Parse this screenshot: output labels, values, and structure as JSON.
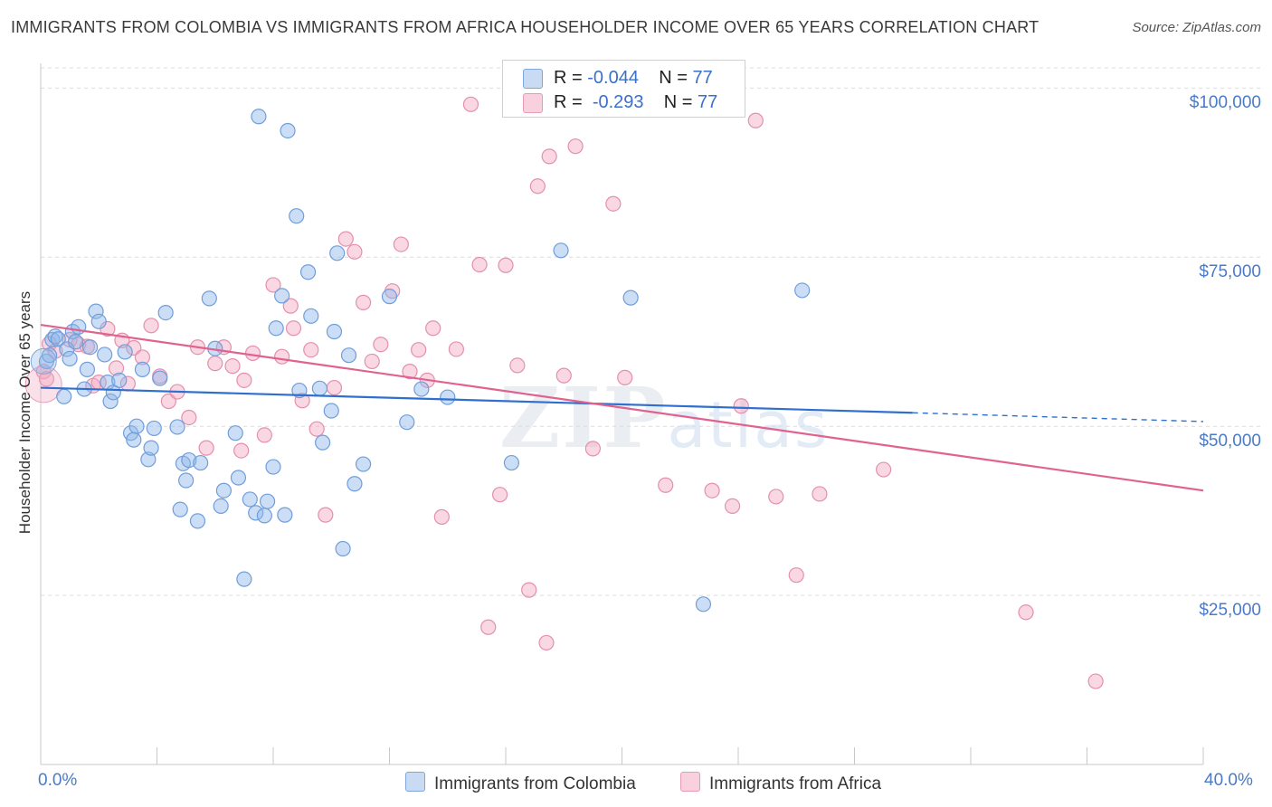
{
  "title": "IMMIGRANTS FROM COLOMBIA VS IMMIGRANTS FROM AFRICA HOUSEHOLDER INCOME OVER 65 YEARS CORRELATION CHART",
  "source": "Source: ZipAtlas.com",
  "watermark": {
    "zip": "ZIP",
    "atlas": "atlas"
  },
  "legend_top": [
    {
      "r_label": "R =",
      "r_value": "-0.044",
      "n_label": "N =",
      "n_value": "77"
    },
    {
      "r_label": "R =",
      "r_value": "-0.293",
      "n_label": "N =",
      "n_value": "77"
    }
  ],
  "bottom_legend": [
    "Immigrants from Colombia",
    "Immigrants from Africa"
  ],
  "colors": {
    "colombia": "#8fb6e8",
    "colombia_line": "#2f6fcf",
    "africa": "#f2a8c0",
    "africa_line": "#e0628f",
    "tick": "#4a7bc8"
  },
  "chart_data": {
    "type": "scatter",
    "title": "IMMIGRANTS FROM COLOMBIA VS IMMIGRANTS FROM AFRICA HOUSEHOLDER INCOME OVER 65 YEARS CORRELATION CHART",
    "xlabel": "",
    "ylabel": "Householder Income Over 65 years",
    "xlim": [
      0,
      40
    ],
    "ylim": [
      0,
      105000
    ],
    "x_tick_labels": [
      "0.0%",
      "40.0%"
    ],
    "y_ticks": [
      25000,
      50000,
      75000,
      100000
    ],
    "y_tick_labels": [
      "$25,000",
      "$50,000",
      "$75,000",
      "$100,000"
    ],
    "grid": "horizontal dashed",
    "legend_position": "top-center",
    "series": [
      {
        "name": "Immigrants from Colombia",
        "trend": {
          "x0": 0,
          "y0": 55700,
          "x1": 30,
          "y1": 52000,
          "dashed_to_x": 40,
          "dashed_to_y": 50700
        },
        "points": [
          [
            0.2,
            59600
          ],
          [
            0.3,
            60500
          ],
          [
            0.4,
            62800
          ],
          [
            0.5,
            63300
          ],
          [
            0.6,
            62900
          ],
          [
            0.8,
            54400
          ],
          [
            0.9,
            61400
          ],
          [
            1.0,
            60000
          ],
          [
            1.1,
            64000
          ],
          [
            1.3,
            64700
          ],
          [
            1.6,
            58400
          ],
          [
            1.7,
            61700
          ],
          [
            1.9,
            67000
          ],
          [
            2.0,
            65500
          ],
          [
            2.2,
            60600
          ],
          [
            2.3,
            56500
          ],
          [
            2.4,
            53700
          ],
          [
            2.5,
            55000
          ],
          [
            2.9,
            61000
          ],
          [
            3.1,
            49000
          ],
          [
            3.2,
            48000
          ],
          [
            3.5,
            58400
          ],
          [
            3.7,
            45100
          ],
          [
            3.8,
            46800
          ],
          [
            3.9,
            49700
          ],
          [
            4.1,
            57100
          ],
          [
            4.3,
            66800
          ],
          [
            4.7,
            49900
          ],
          [
            4.8,
            37700
          ],
          [
            4.9,
            44500
          ],
          [
            5.0,
            42000
          ],
          [
            5.1,
            45000
          ],
          [
            5.4,
            36000
          ],
          [
            5.5,
            44600
          ],
          [
            5.8,
            68900
          ],
          [
            6.0,
            61500
          ],
          [
            6.2,
            38200
          ],
          [
            6.3,
            40500
          ],
          [
            6.7,
            49000
          ],
          [
            6.8,
            42400
          ],
          [
            7.0,
            27400
          ],
          [
            7.2,
            39200
          ],
          [
            7.4,
            37200
          ],
          [
            7.5,
            95800
          ],
          [
            7.7,
            36800
          ],
          [
            7.8,
            38900
          ],
          [
            8.0,
            44000
          ],
          [
            8.1,
            64500
          ],
          [
            8.3,
            69300
          ],
          [
            8.4,
            36900
          ],
          [
            8.5,
            93700
          ],
          [
            8.8,
            81100
          ],
          [
            8.9,
            55300
          ],
          [
            9.2,
            72800
          ],
          [
            9.3,
            66300
          ],
          [
            9.6,
            55600
          ],
          [
            9.7,
            47600
          ],
          [
            10.0,
            52300
          ],
          [
            10.1,
            64000
          ],
          [
            10.2,
            75600
          ],
          [
            10.4,
            31900
          ],
          [
            10.6,
            60500
          ],
          [
            10.8,
            41500
          ],
          [
            11.1,
            44400
          ],
          [
            12.0,
            69200
          ],
          [
            12.6,
            50600
          ],
          [
            13.1,
            55500
          ],
          [
            14.0,
            54300
          ],
          [
            16.2,
            44600
          ],
          [
            17.9,
            76000
          ],
          [
            20.3,
            69000
          ],
          [
            22.8,
            23700
          ],
          [
            26.2,
            70100
          ],
          [
            1.5,
            55500
          ],
          [
            3.3,
            50000
          ],
          [
            2.7,
            56800
          ],
          [
            1.2,
            62500
          ]
        ]
      },
      {
        "name": "Immigrants from Africa",
        "trend": {
          "x0": 0,
          "y0": 65000,
          "x1": 40,
          "y1": 40500
        },
        "points": [
          [
            0.1,
            58100
          ],
          [
            0.2,
            57000
          ],
          [
            0.3,
            62200
          ],
          [
            0.5,
            61100
          ],
          [
            1.0,
            62800
          ],
          [
            1.3,
            62100
          ],
          [
            1.6,
            61800
          ],
          [
            1.8,
            56000
          ],
          [
            2.0,
            56500
          ],
          [
            2.3,
            64400
          ],
          [
            2.6,
            58600
          ],
          [
            2.8,
            62700
          ],
          [
            3.0,
            56300
          ],
          [
            3.2,
            61600
          ],
          [
            3.5,
            60200
          ],
          [
            3.8,
            64900
          ],
          [
            4.1,
            57400
          ],
          [
            4.4,
            53700
          ],
          [
            4.7,
            55100
          ],
          [
            5.1,
            51300
          ],
          [
            5.4,
            61700
          ],
          [
            5.7,
            46800
          ],
          [
            6.0,
            59300
          ],
          [
            6.3,
            61700
          ],
          [
            6.6,
            58900
          ],
          [
            6.9,
            46400
          ],
          [
            7.3,
            60800
          ],
          [
            7.7,
            48700
          ],
          [
            8.0,
            70900
          ],
          [
            8.3,
            60300
          ],
          [
            8.6,
            67800
          ],
          [
            8.7,
            64500
          ],
          [
            9.0,
            53800
          ],
          [
            9.3,
            61300
          ],
          [
            9.5,
            49600
          ],
          [
            9.8,
            36900
          ],
          [
            10.1,
            55700
          ],
          [
            10.5,
            77700
          ],
          [
            10.8,
            75800
          ],
          [
            11.1,
            68300
          ],
          [
            11.4,
            59600
          ],
          [
            11.7,
            62100
          ],
          [
            12.1,
            70000
          ],
          [
            12.4,
            76900
          ],
          [
            12.7,
            58100
          ],
          [
            13.0,
            61300
          ],
          [
            13.3,
            56800
          ],
          [
            13.5,
            64500
          ],
          [
            13.8,
            36600
          ],
          [
            14.3,
            61400
          ],
          [
            14.8,
            97600
          ],
          [
            15.1,
            73900
          ],
          [
            15.4,
            20300
          ],
          [
            15.8,
            39900
          ],
          [
            16.0,
            73800
          ],
          [
            16.4,
            59000
          ],
          [
            16.8,
            25800
          ],
          [
            17.1,
            85500
          ],
          [
            17.4,
            18000
          ],
          [
            17.5,
            89900
          ],
          [
            18.0,
            57500
          ],
          [
            18.4,
            91400
          ],
          [
            19.0,
            46700
          ],
          [
            19.7,
            82900
          ],
          [
            20.1,
            57200
          ],
          [
            21.5,
            41300
          ],
          [
            23.1,
            40500
          ],
          [
            23.8,
            38200
          ],
          [
            24.6,
            95200
          ],
          [
            25.3,
            39600
          ],
          [
            26.0,
            28000
          ],
          [
            26.8,
            40000
          ],
          [
            29.0,
            43600
          ],
          [
            33.9,
            22500
          ],
          [
            36.3,
            12300
          ],
          [
            24.1,
            53000
          ],
          [
            7.0,
            56800
          ]
        ]
      }
    ]
  }
}
